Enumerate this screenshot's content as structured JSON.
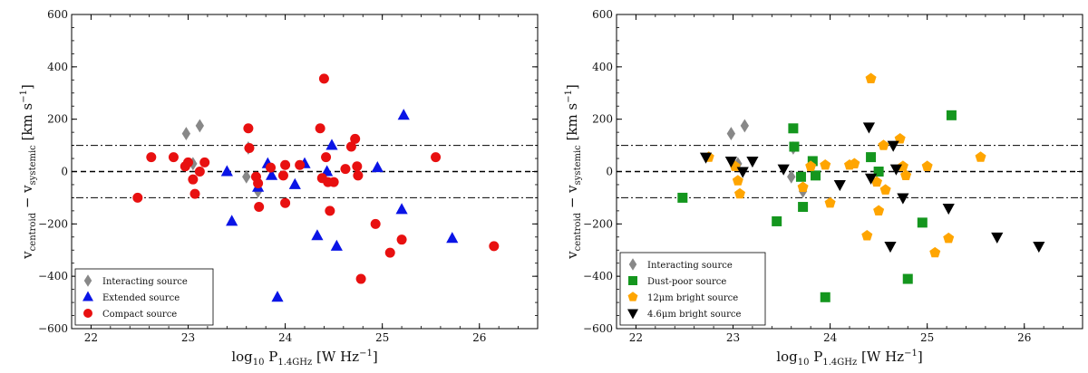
{
  "chart_data": [
    {
      "type": "scatter",
      "panel": "left",
      "xlabel": "log10 P1.4GHz [W Hz^-1]",
      "ylabel": "v_centroid - v_systemic [km s^-1]",
      "xlabel_parts": {
        "base": "log",
        "base_sub": "10",
        "main": " P",
        "main_sub": "1.4GHz",
        "unit": " [W Hz",
        "unit_sup": "−1",
        "close": "]"
      },
      "ylabel_parts": {
        "a": "v",
        "a_sub": "centroid",
        "mid": " − v",
        "b_sub": "systemic",
        "unit": " [km s",
        "unit_sup": "−1",
        "close": "]"
      },
      "xlim": [
        21.8,
        26.6
      ],
      "ylim": [
        -600,
        600
      ],
      "xticks": [
        "22",
        "23",
        "24",
        "25",
        "26"
      ],
      "yticks": [
        "−600",
        "−400",
        "−200",
        "0",
        "200",
        "400",
        "600"
      ],
      "hlines": [
        {
          "y": 0,
          "style": "dashed"
        },
        {
          "y": 100,
          "style": "dashdot"
        },
        {
          "y": -100,
          "style": "dashdot"
        }
      ],
      "legend_position": "bottom-left",
      "series": [
        {
          "name": "Interacting source",
          "marker": "diamond",
          "color": "#888888",
          "points": [
            [
              22.98,
              145
            ],
            [
              23.12,
              175
            ],
            [
              23.05,
              30
            ],
            [
              23.6,
              -20
            ],
            [
              23.62,
              90
            ],
            [
              23.72,
              -75
            ]
          ]
        },
        {
          "name": "Extended source",
          "marker": "triangle-up",
          "color": "#0a14e6",
          "points": [
            [
              23.4,
              0
            ],
            [
              23.45,
              -190
            ],
            [
              23.72,
              -60
            ],
            [
              23.82,
              30
            ],
            [
              23.86,
              -15
            ],
            [
              23.92,
              -480
            ],
            [
              24.1,
              -50
            ],
            [
              24.2,
              30
            ],
            [
              24.33,
              -245
            ],
            [
              24.43,
              0
            ],
            [
              24.48,
              100
            ],
            [
              24.53,
              -285
            ],
            [
              24.95,
              15
            ],
            [
              25.2,
              -145
            ],
            [
              25.22,
              215
            ],
            [
              25.72,
              -255
            ]
          ]
        },
        {
          "name": "Compact source",
          "marker": "circle",
          "color": "#e81010",
          "points": [
            [
              22.48,
              -100
            ],
            [
              22.62,
              55
            ],
            [
              22.85,
              55
            ],
            [
              22.97,
              20
            ],
            [
              23.0,
              35
            ],
            [
              23.05,
              -30
            ],
            [
              23.07,
              -85
            ],
            [
              23.12,
              0
            ],
            [
              23.17,
              35
            ],
            [
              23.62,
              165
            ],
            [
              23.63,
              90
            ],
            [
              23.7,
              -20
            ],
            [
              23.72,
              -45
            ],
            [
              23.73,
              -135
            ],
            [
              23.85,
              15
            ],
            [
              23.98,
              -15
            ],
            [
              24.0,
              25
            ],
            [
              24.0,
              -120
            ],
            [
              24.15,
              25
            ],
            [
              24.36,
              165
            ],
            [
              24.38,
              -25
            ],
            [
              24.4,
              355
            ],
            [
              24.42,
              55
            ],
            [
              24.44,
              -40
            ],
            [
              24.46,
              -150
            ],
            [
              24.5,
              -40
            ],
            [
              24.62,
              10
            ],
            [
              24.68,
              95
            ],
            [
              24.72,
              125
            ],
            [
              24.74,
              20
            ],
            [
              24.75,
              -15
            ],
            [
              24.78,
              -410
            ],
            [
              24.93,
              -200
            ],
            [
              25.08,
              -310
            ],
            [
              25.2,
              -260
            ],
            [
              25.55,
              55
            ],
            [
              26.15,
              -285
            ]
          ]
        }
      ]
    },
    {
      "type": "scatter",
      "panel": "right",
      "xlabel": "log10 P1.4GHz [W Hz^-1]",
      "ylabel": "v_centroid - v_systemic [km s^-1]",
      "xlabel_parts": {
        "base": "log",
        "base_sub": "10",
        "main": " P",
        "main_sub": "1.4GHz",
        "unit": " [W Hz",
        "unit_sup": "−1",
        "close": "]"
      },
      "ylabel_parts": {
        "a": "v",
        "a_sub": "centroid",
        "mid": " − v",
        "b_sub": "systemic",
        "unit": " [km s",
        "unit_sup": "−1",
        "close": "]"
      },
      "xlim": [
        21.8,
        26.6
      ],
      "ylim": [
        -600,
        600
      ],
      "xticks": [
        "22",
        "23",
        "24",
        "25",
        "26"
      ],
      "yticks": [
        "−600",
        "−400",
        "−200",
        "0",
        "200",
        "400",
        "600"
      ],
      "hlines": [
        {
          "y": 0,
          "style": "dashed"
        },
        {
          "y": 100,
          "style": "dashdot"
        },
        {
          "y": -100,
          "style": "dashdot"
        }
      ],
      "legend_position": "bottom-left",
      "series": [
        {
          "name": "Interacting source",
          "marker": "diamond",
          "color": "#888888",
          "points": [
            [
              22.98,
              145
            ],
            [
              23.12,
              175
            ],
            [
              23.05,
              30
            ],
            [
              23.6,
              -20
            ],
            [
              23.62,
              90
            ],
            [
              23.72,
              -75
            ]
          ]
        },
        {
          "name": "Dust-poor source",
          "marker": "square",
          "color": "#14961e",
          "points": [
            [
              22.48,
              -100
            ],
            [
              23.45,
              -190
            ],
            [
              23.62,
              165
            ],
            [
              23.63,
              95
            ],
            [
              23.7,
              -20
            ],
            [
              23.72,
              -135
            ],
            [
              23.82,
              40
            ],
            [
              23.85,
              -15
            ],
            [
              23.95,
              -480
            ],
            [
              24.42,
              55
            ],
            [
              24.5,
              0
            ],
            [
              24.8,
              -410
            ],
            [
              24.95,
              -195
            ],
            [
              25.25,
              215
            ]
          ]
        },
        {
          "name": "12μm bright source",
          "marker": "pentagon",
          "color": "#ffa500",
          "points": [
            [
              22.75,
              55
            ],
            [
              23.02,
              20
            ],
            [
              23.05,
              -35
            ],
            [
              23.07,
              -85
            ],
            [
              23.72,
              -60
            ],
            [
              23.8,
              20
            ],
            [
              23.95,
              25
            ],
            [
              24.0,
              -120
            ],
            [
              24.2,
              25
            ],
            [
              24.25,
              30
            ],
            [
              24.38,
              -245
            ],
            [
              24.42,
              355
            ],
            [
              24.48,
              -40
            ],
            [
              24.5,
              -150
            ],
            [
              24.55,
              100
            ],
            [
              24.57,
              -70
            ],
            [
              24.72,
              125
            ],
            [
              24.75,
              20
            ],
            [
              24.78,
              -15
            ],
            [
              25.0,
              20
            ],
            [
              25.08,
              -310
            ],
            [
              25.22,
              -255
            ],
            [
              25.55,
              55
            ]
          ]
        },
        {
          "name": "4.6μm bright source",
          "marker": "triangle-down",
          "color": "#000000",
          "points": [
            [
              22.72,
              55
            ],
            [
              22.98,
              40
            ],
            [
              23.1,
              0
            ],
            [
              23.2,
              40
            ],
            [
              23.52,
              10
            ],
            [
              24.1,
              -50
            ],
            [
              24.4,
              170
            ],
            [
              24.42,
              -25
            ],
            [
              24.62,
              -285
            ],
            [
              24.65,
              100
            ],
            [
              24.68,
              10
            ],
            [
              24.75,
              -100
            ],
            [
              25.22,
              -140
            ],
            [
              25.72,
              -250
            ],
            [
              26.15,
              -285
            ]
          ]
        }
      ]
    }
  ]
}
